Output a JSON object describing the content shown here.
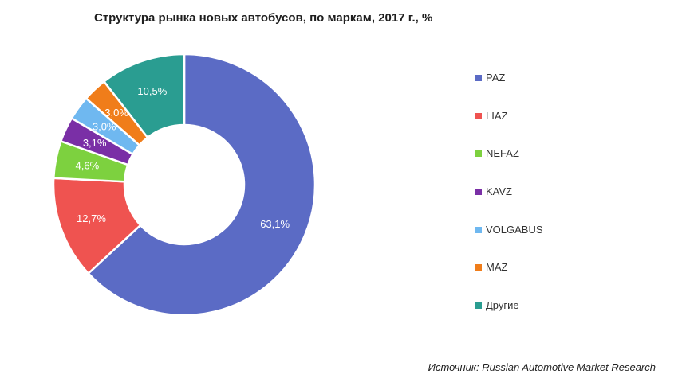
{
  "title": "Структура рынка новых автобусов, по маркам, 2017 г., %",
  "source": "Источник: Russian Automotive Market Research",
  "chart_data": {
    "type": "pie",
    "donut": true,
    "title": "Структура рынка новых автобусов, по маркам, 2017 г., %",
    "legend_position": "right",
    "slices": [
      {
        "label": "PAZ",
        "value": 63.1,
        "display": "63,1%",
        "color": "#5b6bc5"
      },
      {
        "label": "LIAZ",
        "value": 12.7,
        "display": "12,7%",
        "color": "#ef5350"
      },
      {
        "label": "NEFAZ",
        "value": 4.6,
        "display": "4,6%",
        "color": "#7dd13f"
      },
      {
        "label": "KAVZ",
        "value": 3.1,
        "display": "3,1%",
        "color": "#7a2fa6"
      },
      {
        "label": "VOLGABUS",
        "value": 3.0,
        "display": "3,0%",
        "color": "#6fb8f0"
      },
      {
        "label": "MAZ",
        "value": 3.0,
        "display": "3,0%",
        "color": "#f07d1a"
      },
      {
        "label": "Другие",
        "value": 10.5,
        "display": "10,5%",
        "color": "#2a9d91"
      }
    ]
  }
}
